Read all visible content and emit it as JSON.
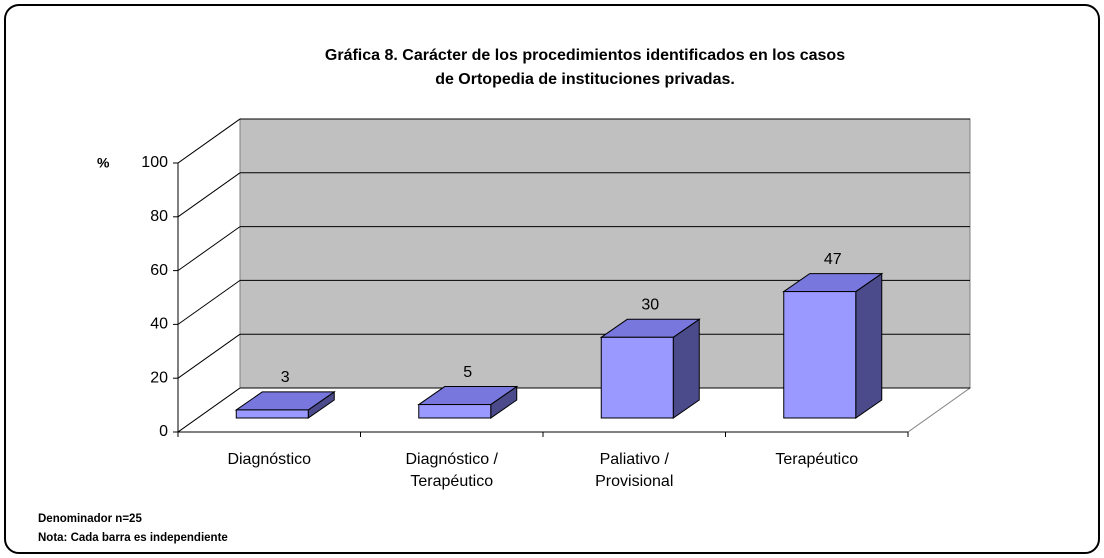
{
  "chart_data": {
    "type": "bar3d",
    "title": [
      "Gráfica 8.  Carácter de los procedimientos identificados en los casos",
      "de Ortopedia de instituciones privadas."
    ],
    "y_label": "%",
    "categories": [
      [
        "Diagnóstico"
      ],
      [
        "Diagnóstico /",
        "Terapéutico"
      ],
      [
        "Paliativo /",
        "Provisional"
      ],
      [
        "Terapéutico"
      ]
    ],
    "values": [
      3,
      5,
      30,
      47
    ],
    "colors": {
      "front": "#9999ff",
      "top": "#7777dd",
      "side": "#4b4b8c",
      "wall": "#c0c0c0"
    },
    "ylim": [
      0,
      100
    ],
    "yticks": [
      0,
      20,
      40,
      60,
      80,
      100
    ],
    "grid": true,
    "notes": [
      "Denominador n=25",
      "Nota: Cada barra es independiente"
    ]
  }
}
